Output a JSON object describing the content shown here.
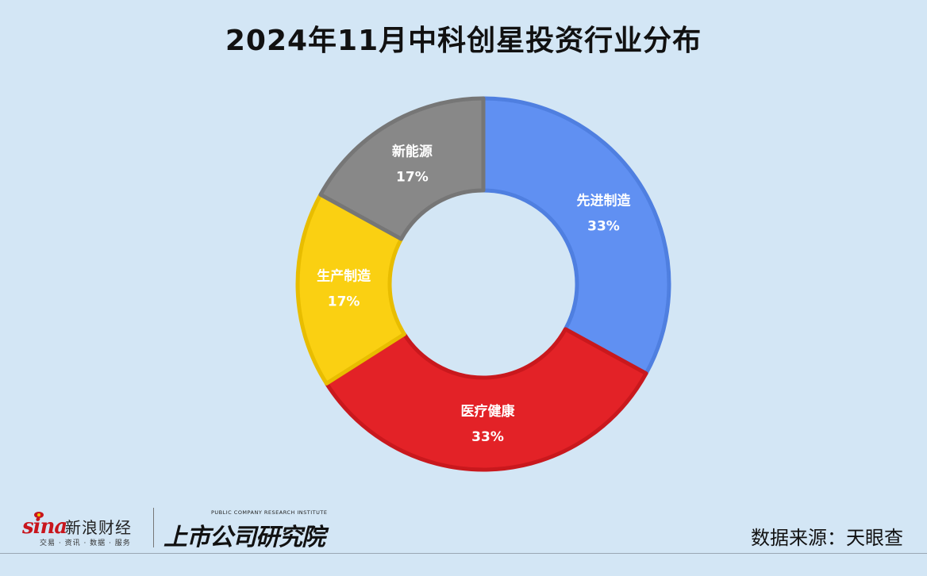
{
  "title": "2024年11月中科创星投资行业分布",
  "source": "数据来源：天眼查",
  "logos": {
    "sina_word": "sina",
    "sina_cn": "新浪财经",
    "sina_sub": "交易 · 资讯 · 数据 · 服务",
    "institute_en": "PUBLIC COMPANY RESEARCH INSTITUTE",
    "institute_cn": "上市公司研究院"
  },
  "chart_data": {
    "type": "pie",
    "donut": true,
    "categories": [
      "先进制造",
      "医疗健康",
      "生产制造",
      "新能源"
    ],
    "values": [
      33,
      33,
      17,
      17
    ],
    "labels": [
      "33%",
      "33%",
      "17%",
      "17%"
    ],
    "colors": [
      "#6090f2",
      "#e32227",
      "#fad012",
      "#888888"
    ],
    "edge_colors": [
      "#4f7fe0",
      "#c9181d",
      "#e8bd00",
      "#767676"
    ],
    "start": "12 o'clock",
    "direction": "clockwise"
  }
}
